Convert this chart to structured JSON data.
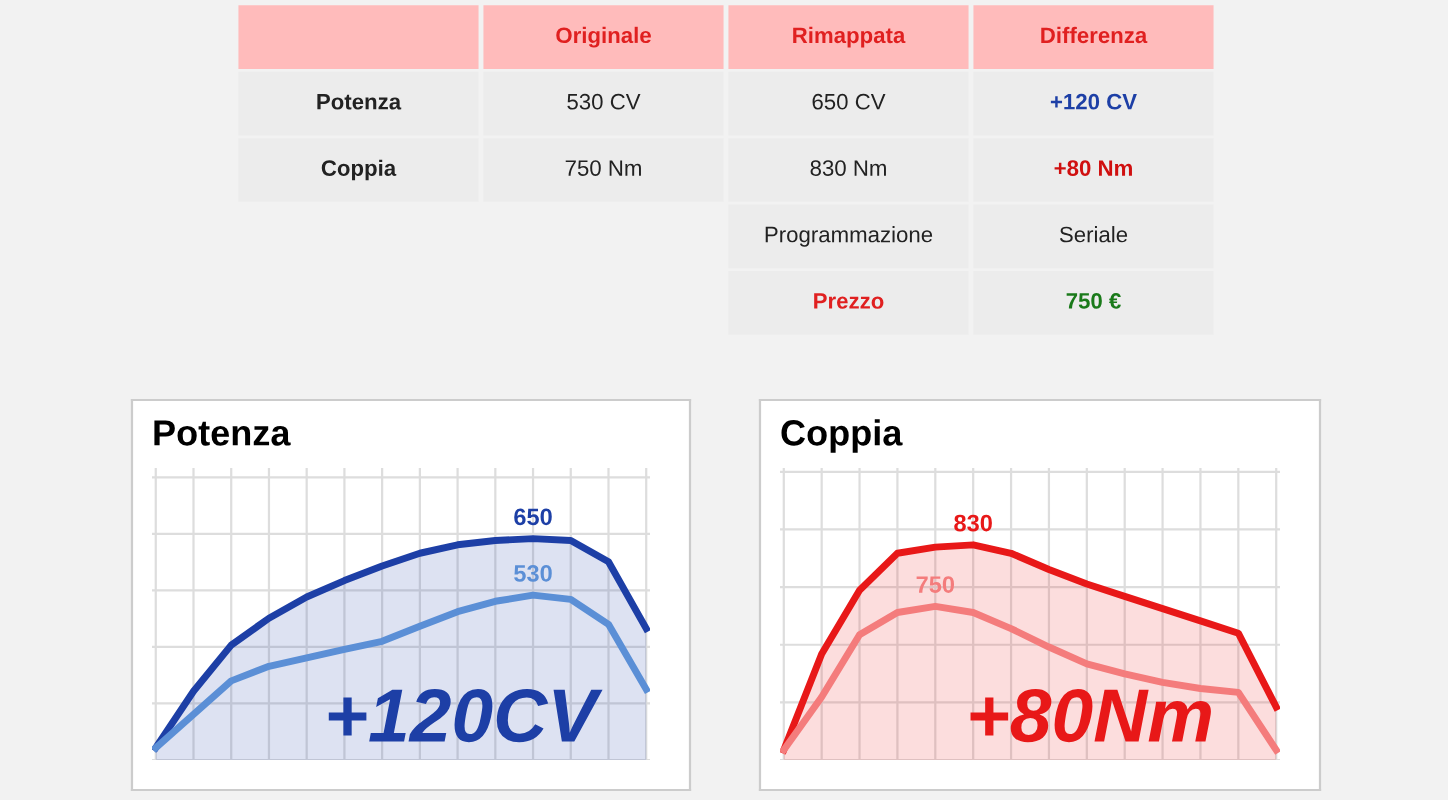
{
  "chart_data": [
    {
      "type": "other",
      "cell_labels": [
        [
          null,
          "Originale",
          "Rimappata",
          "Differenza"
        ],
        [
          "Potenza",
          "530 CV",
          "650 CV",
          "+120 CV"
        ],
        [
          "Coppia",
          "750 Nm",
          "830 Nm",
          "+80 Nm"
        ],
        [
          null,
          null,
          "Programmazione",
          "Seriale"
        ],
        [
          null,
          null,
          "Prezzo",
          "750 €"
        ]
      ]
    },
    {
      "type": "line",
      "title": "Potenza",
      "grid": true,
      "legend": false,
      "tick_labels": false,
      "categories": [
        null,
        null,
        null,
        null,
        null,
        null,
        null,
        null,
        null,
        null,
        null,
        null,
        null,
        null
      ],
      "ylim": [
        180,
        800
      ],
      "yticks": [
        {
          "value": 180,
          "label": null
        },
        {
          "value": 300,
          "label": null
        },
        {
          "value": 420,
          "label": null
        },
        {
          "value": 540,
          "label": null
        },
        {
          "value": 660,
          "label": null
        },
        {
          "value": 780,
          "label": null
        }
      ],
      "annotations": [
        "+120CV"
      ],
      "series": [
        {
          "color": "#1d3fa6",
          "values": [
            206,
            326,
            424,
            481,
            526,
            561,
            592,
            619,
            637,
            646,
            650,
            646,
            601,
            459
          ],
          "value_labels": [
            null,
            null,
            null,
            null,
            null,
            null,
            null,
            null,
            null,
            null,
            "650",
            null,
            null,
            null
          ]
        },
        {
          "color": "#5b8fd6",
          "values": [
            206,
            277,
            348,
            379,
            397,
            415,
            432,
            464,
            495,
            517,
            530,
            521,
            468,
            330
          ],
          "value_labels": [
            null,
            null,
            null,
            null,
            null,
            null,
            null,
            null,
            null,
            null,
            "530",
            null,
            null,
            null
          ]
        }
      ]
    },
    {
      "type": "line",
      "title": "Coppia",
      "grid": true,
      "legend": false,
      "tick_labels": false,
      "categories": [
        null,
        null,
        null,
        null,
        null,
        null,
        null,
        null,
        null,
        null,
        null,
        null,
        null,
        null
      ],
      "ylim": [
        550,
        930
      ],
      "yticks": [
        {
          "value": 550,
          "label": null
        },
        {
          "value": 625,
          "label": null
        },
        {
          "value": 700,
          "label": null
        },
        {
          "value": 775,
          "label": null
        },
        {
          "value": 850,
          "label": null
        },
        {
          "value": 925,
          "label": null
        }
      ],
      "annotations": [
        "+80Nm"
      ],
      "series": [
        {
          "color": "#e81818",
          "values": [
            563,
            688,
            771,
            819,
            827,
            830,
            819,
            798,
            779,
            763,
            747,
            731,
            715,
            619
          ],
          "value_labels": [
            null,
            null,
            null,
            null,
            null,
            "830",
            null,
            null,
            null,
            null,
            null,
            null,
            null,
            null
          ]
        },
        {
          "color": "#f47c7c",
          "values": [
            563,
            632,
            713,
            742,
            750,
            742,
            721,
            697,
            675,
            662,
            651,
            643,
            638,
            563
          ],
          "value_labels": [
            null,
            null,
            null,
            null,
            "750",
            null,
            null,
            null,
            null,
            null,
            null,
            null,
            null,
            null
          ]
        }
      ]
    }
  ]
}
